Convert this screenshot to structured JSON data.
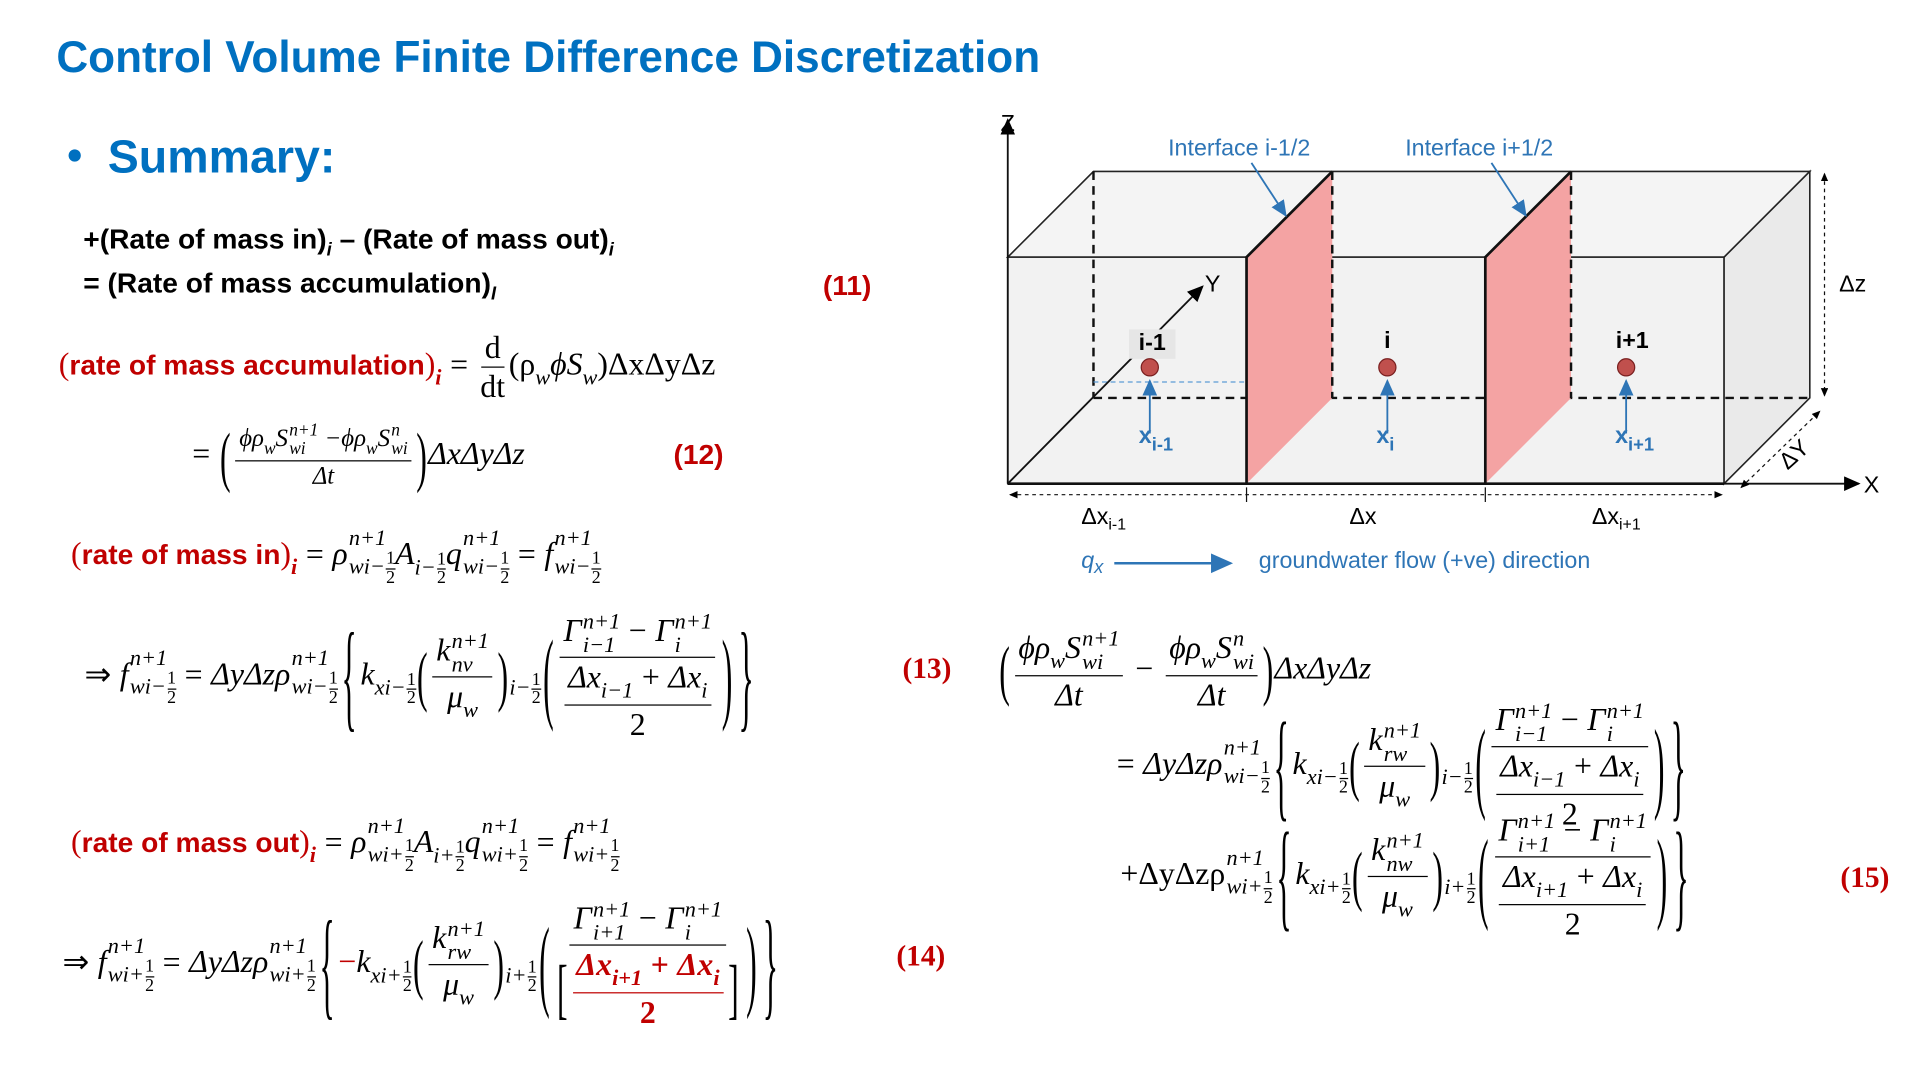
{
  "title": "Control Volume Finite Difference Discretization",
  "bullet": "Summary:",
  "balance": {
    "line1": [
      "+(Rate of mass in)",
      "i",
      " – (Rate of mass out)",
      "i"
    ],
    "line2": [
      "= (Rate of mass accumulation)",
      "I"
    ],
    "tag": "(11)"
  },
  "eq_acc": [
    "(",
    "rate of mass accumulation",
    ")",
    "i",
    "=",
    "d",
    "dt",
    "(ρ",
    "w",
    "ϕS",
    ")ΔxΔyΔz"
  ],
  "eq12": [
    "=",
    "(",
    "ϕρ",
    "w",
    "S",
    "n+1",
    "wi",
    " −ϕρ",
    "n",
    "Δt",
    ")",
    "ΔxΔyΔz",
    "(12)"
  ],
  "eq_in": [
    "(",
    "rate of mass in",
    ")",
    "i",
    "=",
    "ρ",
    "n+1",
    "wi−",
    "1",
    "2",
    "A",
    "i−",
    "q",
    "f"
  ],
  "eq13": [
    "⇒",
    "f",
    "n+1",
    "wi−",
    "1",
    "2",
    "=",
    "ΔyΔzρ",
    "{",
    "k",
    "xi−",
    "(",
    "nv",
    "μ",
    "w",
    ")",
    "i−",
    "Γ",
    "i−1",
    "−",
    "i",
    "Δx",
    "+",
    "}",
    "(13)"
  ],
  "eq_out": [
    "(",
    "rate of mass out",
    ")",
    "i",
    "=",
    "ρ",
    "n+1",
    "wi+",
    "1",
    "2",
    "A",
    "i+",
    "q",
    "f"
  ],
  "eq14": [
    "⇒",
    "f",
    "n+1",
    "wi+",
    "1",
    "2",
    "=",
    "ΔyΔzρ",
    "{",
    "−",
    "k",
    "xi+",
    "(",
    "rw",
    "μ",
    "w",
    ")",
    "i+",
    "Γ",
    "i+1",
    "i",
    "Δx",
    "+",
    "[",
    "]",
    "}",
    "(14)"
  ],
  "eq15": [
    "(",
    "ϕρ",
    "w",
    "S",
    "n+1",
    "wi",
    "Δt",
    "−",
    "n",
    ")",
    "ΔxΔyΔz",
    "=",
    "ΔyΔzρ",
    "wi−",
    "1",
    "2",
    "{",
    "k",
    "xi−",
    "rw",
    "μ",
    "i−",
    "Γ",
    "i−1",
    "i",
    "Δx",
    "+",
    "}",
    "+ΔyΔzρ",
    "wi+",
    "xi+",
    "nw",
    "i+",
    "i+1",
    "(15)"
  ],
  "diagram": {
    "axis_z": "Z",
    "axis_y": "Y",
    "axis_x": "X",
    "interfaces": [
      "Interface i-1/2",
      "Interface i+1/2"
    ],
    "dz": "Δz",
    "dy": "ΔY",
    "nodes": [
      {
        "label": "i-1",
        "x": "x",
        "sub": "i-1"
      },
      {
        "label": "i",
        "x": "x",
        "sub": "i"
      },
      {
        "label": "i+1",
        "x": "x",
        "sub": "i+1"
      }
    ],
    "widths": [
      {
        "text": "Δx",
        "sub": "i-1"
      },
      {
        "text": "Δx"
      },
      {
        "text": "Δx",
        "sub": "i+1"
      }
    ],
    "flow": {
      "q": "q",
      "sub": "x",
      "text": "groundwater flow (+ve) direction"
    }
  }
}
